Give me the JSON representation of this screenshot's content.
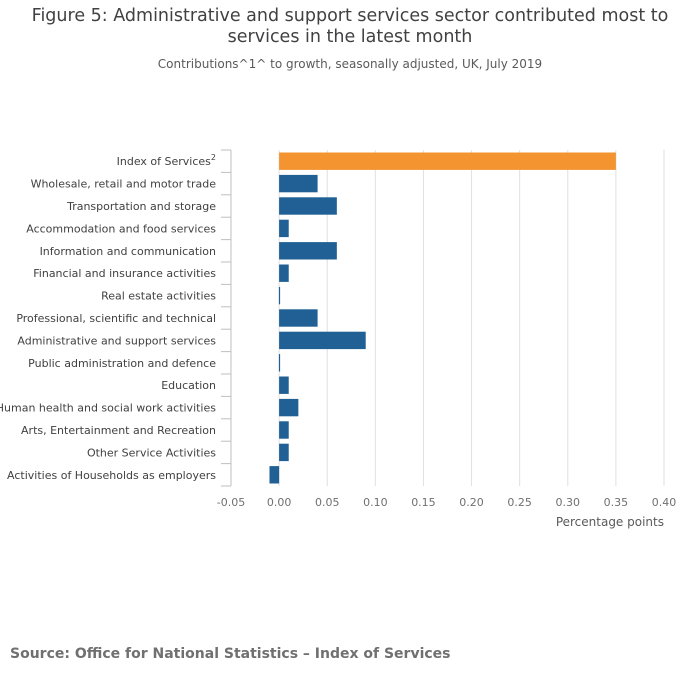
{
  "chart_data": {
    "type": "bar",
    "orientation": "horizontal",
    "title": "Figure 5: Administrative and support services sector contributed most to services in the latest month",
    "subtitle": "Contributions^1^ to growth, seasonally adjusted, UK, July 2019",
    "xlabel": "Percentage points",
    "ylabel": "",
    "xlim": [
      -0.05,
      0.4
    ],
    "xticks": [
      -0.05,
      0.0,
      0.05,
      0.1,
      0.15,
      0.2,
      0.25,
      0.3,
      0.35,
      0.4
    ],
    "xtick_labels": [
      "-0.05",
      "0.00",
      "0.05",
      "0.10",
      "0.15",
      "0.20",
      "0.25",
      "0.30",
      "0.35",
      "0.40"
    ],
    "grid": true,
    "categories": [
      "Index of Services",
      "Wholesale, retail and motor trade",
      "Transportation and storage",
      "Accommodation and food services",
      "Information and communication",
      "Financial and insurance activities",
      "Real estate activities",
      "Professional, scientific and technical",
      "Administrative and support services",
      "Public administration and defence",
      "Education",
      "Human health and social work activities",
      "Arts, Entertainment and Recreation",
      "Other Service Activities",
      "Activities of Households as employers"
    ],
    "category_superscripts": [
      "2",
      "",
      "",
      "",
      "",
      "",
      "",
      "",
      "",
      "",
      "",
      "",
      "",
      "",
      ""
    ],
    "values": [
      0.35,
      0.04,
      0.06,
      0.01,
      0.06,
      0.01,
      0.0,
      0.04,
      0.09,
      0.0,
      0.01,
      0.02,
      0.01,
      0.01,
      -0.01
    ],
    "colors": {
      "highlight": "#f39431",
      "default": "#206095",
      "grid": "#e0e0e0",
      "axis": "#bfbfbf"
    },
    "highlight_index": 0
  },
  "source": "Source: Office for National Statistics – Index of Services"
}
